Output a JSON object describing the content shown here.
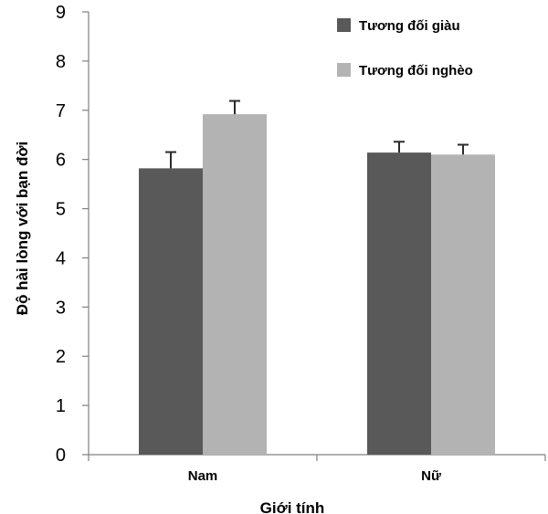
{
  "chart_data": {
    "type": "bar",
    "categories": [
      "Nam",
      "Nữ"
    ],
    "series": [
      {
        "name": "Tương đối giàu",
        "values": [
          5.82,
          6.14
        ],
        "errors": [
          0.33,
          0.22
        ],
        "color": "#595959"
      },
      {
        "name": "Tương đối nghèo",
        "values": [
          6.92,
          6.1
        ],
        "errors": [
          0.27,
          0.2
        ],
        "color": "#b3b3b3"
      }
    ],
    "xlabel": "Giới tính",
    "ylabel": "Độ hài lòng với bạn đời",
    "ylim": [
      0,
      9
    ],
    "yticks": [
      "0",
      "1",
      "2",
      "3",
      "4",
      "5",
      "6",
      "7",
      "8",
      "9"
    ],
    "grid": false,
    "legend_position": "top-right"
  }
}
